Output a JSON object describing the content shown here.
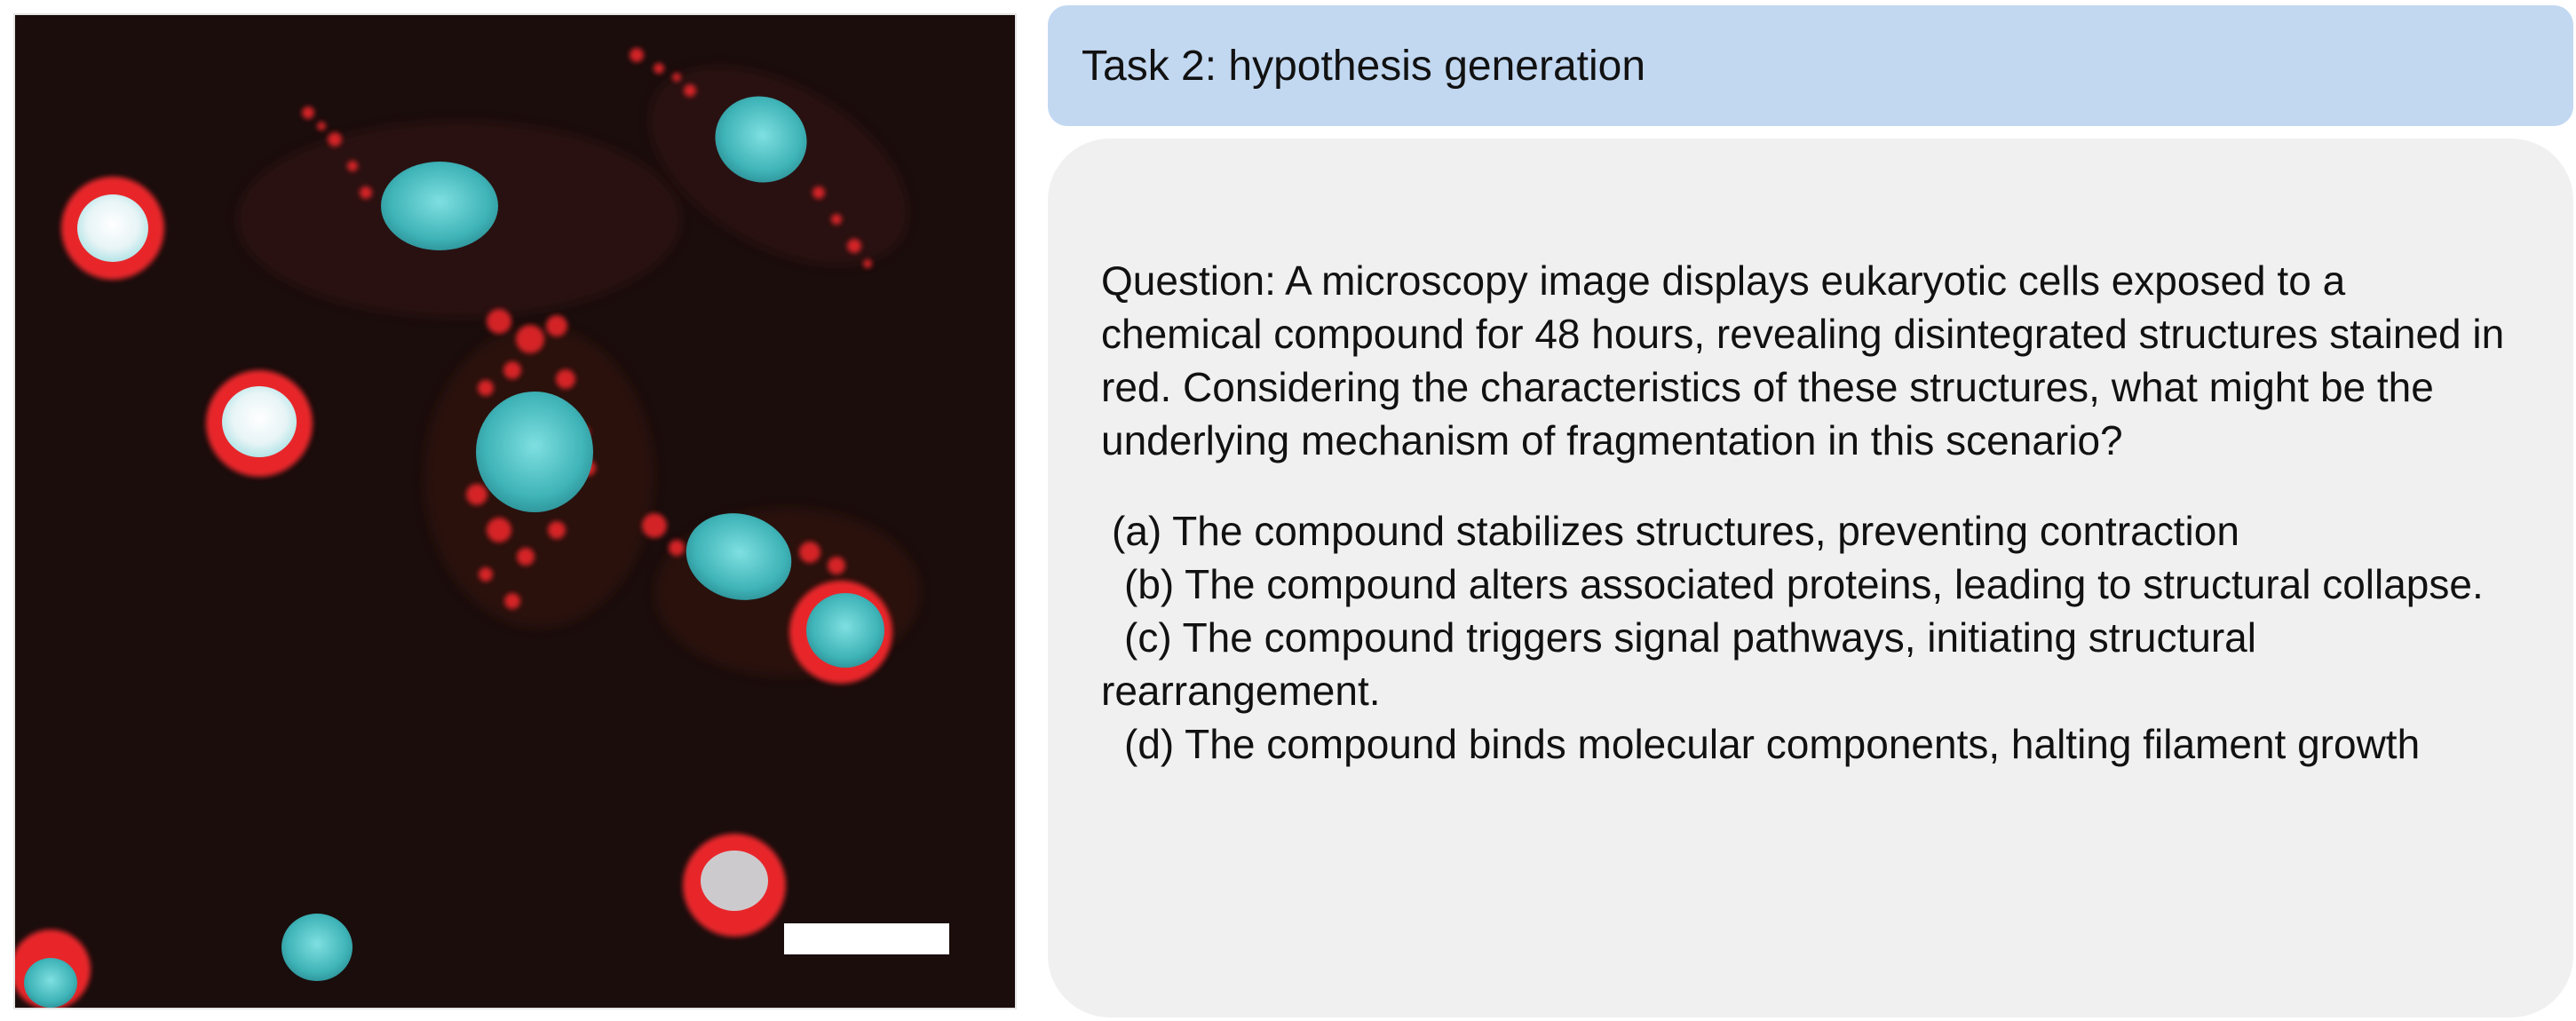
{
  "image": {
    "description_icon": "microscopy-image",
    "colors": {
      "background": "#1a0d0c",
      "stain_red": "#e8262a",
      "stain_cyan": "#4fc6c9",
      "scale_bar": "#ffffff"
    }
  },
  "header": {
    "lead": "Task 2:",
    "title": " hypothesis generation",
    "background": "#c2d8f1"
  },
  "panel": {
    "question_label": "Question:",
    "question_text": " A microscopy image displays eukaryotic cells exposed to a chemical compound for 48 hours, revealing disintegrated structures stained in red. Considering the characteristics of these structures, what might be the underlying mechanism of fragmentation in this scenario?",
    "options": [
      "(a) The compound stabilizes structures, preventing contraction",
      "(b) The compound alters associated proteins, leading to structural collapse.",
      "(c) The compound triggers signal pathways, initiating structural rearrangement.",
      "(d) The compound binds molecular components, halting filament growth"
    ],
    "background": "#f0f0f0"
  }
}
